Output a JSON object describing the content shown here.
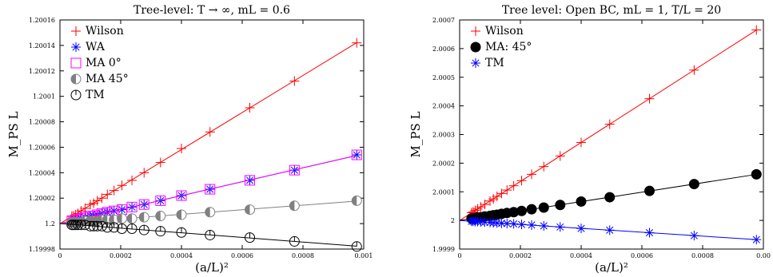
{
  "chart_data": [
    {
      "type": "scatter",
      "title": "Tree-level: T → ∞, mL = 0.6",
      "xlabel": "(a/L)²",
      "ylabel": "M_PS L",
      "xlim": [
        0,
        0.001
      ],
      "ylim": [
        1.19998,
        1.20016
      ],
      "xticks": [
        "0",
        "0.0002",
        "0.0004",
        "0.0006",
        "0.0008",
        "0.001"
      ],
      "yticks": [
        "1.19998",
        "1.2",
        "1.20002",
        "1.20004",
        "1.20006",
        "1.20008",
        "1.2001",
        "1.20012",
        "1.20014",
        "1.20016"
      ],
      "legend_position": "top-left",
      "x": [
        3.91e-05,
        4.44e-05,
        5.1e-05,
        5.92e-05,
        6.94e-05,
        8.26e-05,
        0.0001,
        0.000111,
        0.000123,
        0.000138,
        0.000156,
        0.000178,
        0.000204,
        0.000237,
        0.000277,
        0.000331,
        0.0004,
        0.000494,
        0.000625,
        0.000772,
        0.000977
      ],
      "series": [
        {
          "name": "Wilson",
          "color": "#ff0000",
          "marker": "plus",
          "values": [
            1.200006,
            1.200006,
            1.200007,
            1.200008,
            1.20001,
            1.200012,
            1.200015,
            1.200016,
            1.200018,
            1.20002,
            1.200023,
            1.200026,
            1.20003,
            1.200034,
            1.20004,
            1.200048,
            1.200059,
            1.200072,
            1.200091,
            1.200112,
            1.200142
          ]
        },
        {
          "name": "WA",
          "color": "#0000ff",
          "marker": "asterisk",
          "values": [
            1.200002,
            1.200002,
            1.200003,
            1.200003,
            1.200004,
            1.200005,
            1.200006,
            1.200006,
            1.200007,
            1.200008,
            1.200009,
            1.20001,
            1.200011,
            1.200013,
            1.200015,
            1.200018,
            1.200022,
            1.200027,
            1.200034,
            1.200042,
            1.200054
          ]
        },
        {
          "name": "MA 0°",
          "color": "#ff00ff",
          "marker": "square",
          "values": [
            1.200002,
            1.200002,
            1.200003,
            1.200003,
            1.200004,
            1.200005,
            1.200006,
            1.200006,
            1.200007,
            1.200008,
            1.200009,
            1.20001,
            1.200011,
            1.200013,
            1.200015,
            1.200018,
            1.200022,
            1.200027,
            1.200034,
            1.200042,
            1.200054
          ]
        },
        {
          "name": "MA 45°",
          "color": "#808080",
          "marker": "half-circle",
          "values": [
            1.200001,
            1.200001,
            1.200001,
            1.200001,
            1.200001,
            1.200002,
            1.200002,
            1.200002,
            1.200002,
            1.200003,
            1.200003,
            1.200003,
            1.200004,
            1.200004,
            1.200005,
            1.200006,
            1.200007,
            1.200009,
            1.200011,
            1.200014,
            1.200018
          ]
        },
        {
          "name": "TM",
          "color": "#000000",
          "marker": "circle-tick",
          "values": [
            1.199999,
            1.199999,
            1.199999,
            1.199999,
            1.199999,
            1.199999,
            1.199998,
            1.199998,
            1.199998,
            1.199998,
            1.199997,
            1.199997,
            1.199996,
            1.199996,
            1.199995,
            1.199994,
            1.199993,
            1.199991,
            1.199989,
            1.199986,
            1.199982
          ]
        }
      ]
    },
    {
      "type": "scatter",
      "title": "Tree level: Open BC, mL = 1, T/L = 20",
      "xlabel": "(a/L)²",
      "ylabel": "M_PS L",
      "xlim": [
        0,
        0.001
      ],
      "ylim": [
        1.9999,
        2.0007
      ],
      "xticks": [
        "0",
        "0.0002",
        "0.0004",
        "0.0006",
        "0.0008",
        "0.00"
      ],
      "yticks": [
        "1.9999",
        "2",
        "2.0001",
        "2.0002",
        "2.0003",
        "2.0004",
        "2.0005",
        "2.0006",
        "2.0007"
      ],
      "legend_position": "top-left",
      "x": [
        3.91e-05,
        4.44e-05,
        5.1e-05,
        5.92e-05,
        6.94e-05,
        8.26e-05,
        0.0001,
        0.000111,
        0.000123,
        0.000138,
        0.000156,
        0.000178,
        0.000204,
        0.000237,
        0.000277,
        0.000331,
        0.0004,
        0.000494,
        0.000625,
        0.000772,
        0.000977
      ],
      "series": [
        {
          "name": "Wilson",
          "color": "#ff0000",
          "marker": "plus",
          "values": [
            2.000027,
            2.00003,
            2.000035,
            2.00004,
            2.000047,
            2.000056,
            2.000068,
            2.000075,
            2.000084,
            2.000094,
            2.000106,
            2.000121,
            2.000139,
            2.000161,
            2.000188,
            2.000225,
            2.000272,
            2.000336,
            2.000425,
            2.000525,
            2.000665
          ]
        },
        {
          "name": "MA: 45°",
          "color": "#000000",
          "marker": "filled-circle",
          "values": [
            2.000007,
            2.000007,
            2.000008,
            2.00001,
            2.000011,
            2.000014,
            2.000016,
            2.000018,
            2.00002,
            2.000023,
            2.000026,
            2.000029,
            2.000033,
            2.000039,
            2.000045,
            2.000054,
            2.000066,
            2.000081,
            2.000103,
            2.000127,
            2.000161
          ]
        },
        {
          "name": "TM",
          "color": "#0000ff",
          "marker": "asterisk",
          "values": [
            1.999997,
            1.999997,
            1.999996,
            1.999996,
            1.999995,
            1.999994,
            1.999993,
            1.999992,
            1.999991,
            1.99999,
            1.999989,
            1.999988,
            1.999986,
            1.999984,
            1.999981,
            1.999977,
            1.999972,
            1.999966,
            1.999957,
            1.999947,
            1.999933
          ]
        }
      ]
    }
  ]
}
